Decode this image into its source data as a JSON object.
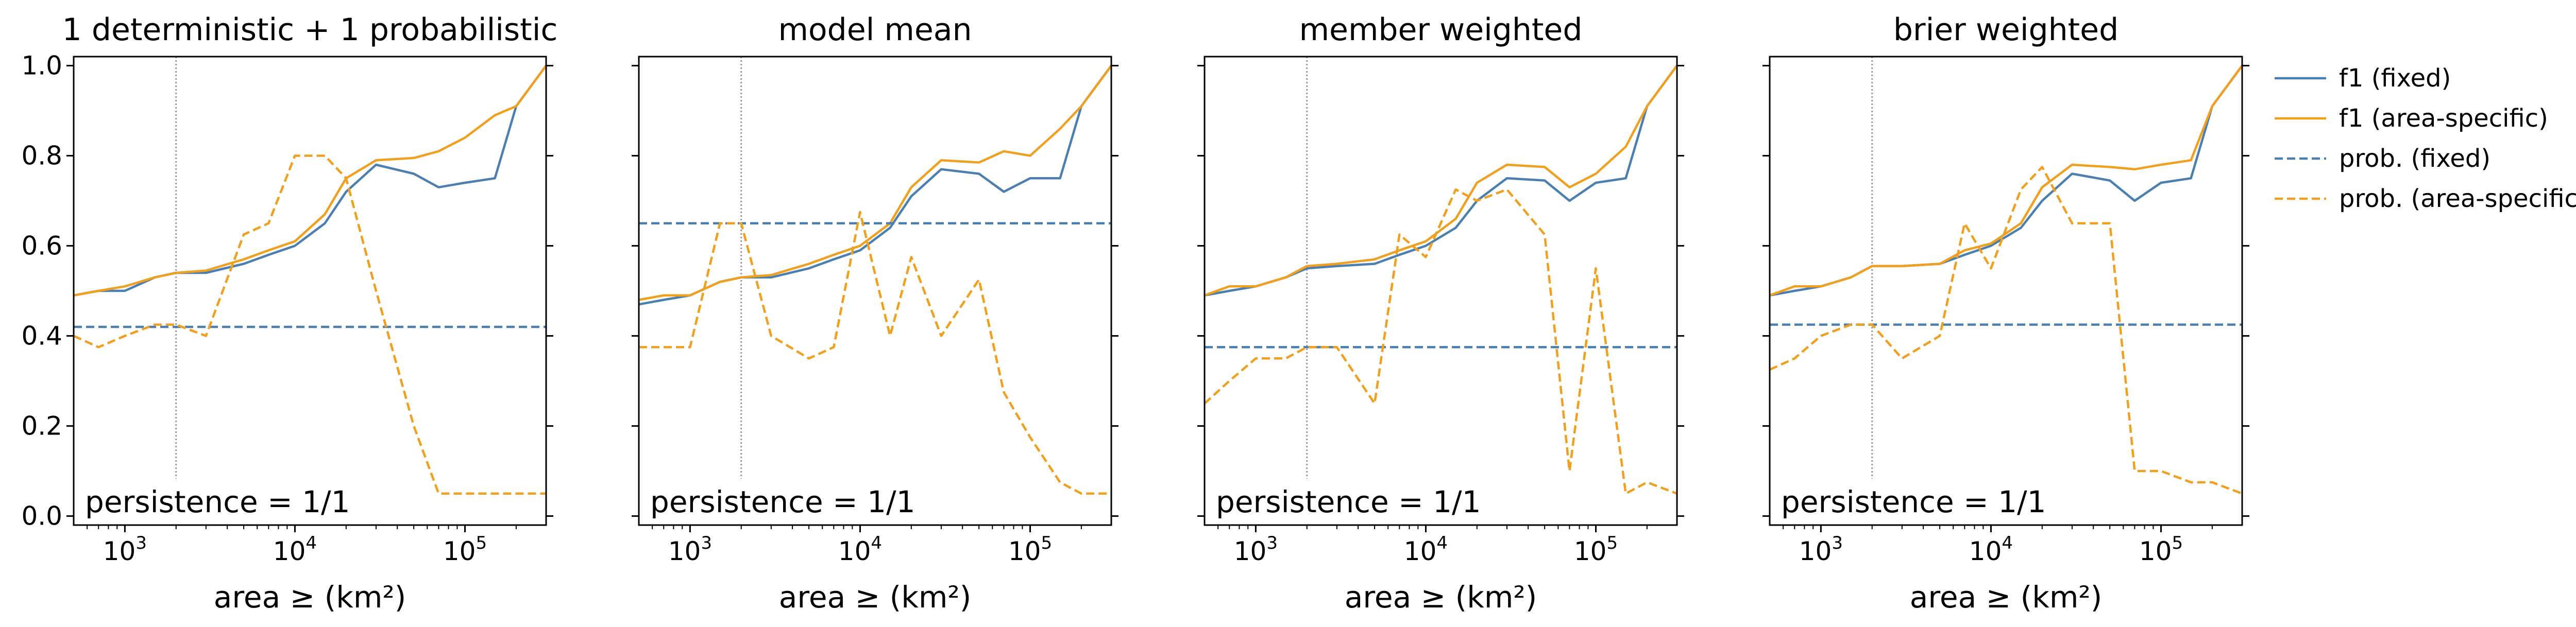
{
  "chart_data": [
    {
      "type": "line",
      "title": "1 deterministic + 1 probabilistic",
      "xlabel": "area ≥ (km²)",
      "ylabel": "",
      "xscale": "log",
      "xlim": [
        500,
        300000
      ],
      "ylim": [
        -0.02,
        1.02
      ],
      "vline_x": 2000,
      "annotation": "persistence = 1/1",
      "x": [
        500,
        700,
        1000,
        1500,
        2000,
        3000,
        5000,
        7000,
        10000,
        15000,
        20000,
        30000,
        50000,
        70000,
        100000,
        150000,
        200000,
        300000
      ],
      "series": [
        {
          "name": "f1 (fixed)",
          "values": [
            0.49,
            0.5,
            0.5,
            0.53,
            0.54,
            0.54,
            0.56,
            0.58,
            0.6,
            0.65,
            0.72,
            0.78,
            0.76,
            0.73,
            0.74,
            0.75,
            0.91,
            1.0
          ]
        },
        {
          "name": "f1 (area-specific)",
          "values": [
            0.49,
            0.5,
            0.51,
            0.53,
            0.54,
            0.545,
            0.57,
            0.59,
            0.61,
            0.67,
            0.75,
            0.79,
            0.795,
            0.81,
            0.84,
            0.89,
            0.91,
            1.0
          ]
        },
        {
          "name": "prob. (fixed)",
          "values": [
            0.42,
            0.42,
            0.42,
            0.42,
            0.42,
            0.42,
            0.42,
            0.42,
            0.42,
            0.42,
            0.42,
            0.42,
            0.42,
            0.42,
            0.42,
            0.42,
            0.42,
            0.42
          ]
        },
        {
          "name": "prob. (area-specific)",
          "values": [
            0.4,
            0.375,
            0.4,
            0.425,
            0.425,
            0.4,
            0.625,
            0.65,
            0.8,
            0.8,
            0.75,
            0.5,
            0.2,
            0.05,
            0.05,
            0.05,
            0.05,
            0.05
          ]
        }
      ]
    },
    {
      "type": "line",
      "title": "model mean",
      "xlabel": "area ≥ (km²)",
      "ylabel": "",
      "xscale": "log",
      "xlim": [
        500,
        300000
      ],
      "ylim": [
        -0.02,
        1.02
      ],
      "vline_x": 2000,
      "annotation": "persistence = 1/1",
      "x": [
        500,
        700,
        1000,
        1500,
        2000,
        3000,
        5000,
        7000,
        10000,
        15000,
        20000,
        30000,
        50000,
        70000,
        100000,
        150000,
        200000,
        300000
      ],
      "series": [
        {
          "name": "f1 (fixed)",
          "values": [
            0.47,
            0.48,
            0.49,
            0.52,
            0.53,
            0.53,
            0.55,
            0.57,
            0.59,
            0.64,
            0.71,
            0.77,
            0.76,
            0.72,
            0.75,
            0.75,
            0.91,
            1.0
          ]
        },
        {
          "name": "f1 (area-specific)",
          "values": [
            0.48,
            0.49,
            0.49,
            0.52,
            0.53,
            0.535,
            0.56,
            0.58,
            0.6,
            0.65,
            0.73,
            0.79,
            0.785,
            0.81,
            0.8,
            0.86,
            0.91,
            1.0
          ]
        },
        {
          "name": "prob. (fixed)",
          "values": [
            0.65,
            0.65,
            0.65,
            0.65,
            0.65,
            0.65,
            0.65,
            0.65,
            0.65,
            0.65,
            0.65,
            0.65,
            0.65,
            0.65,
            0.65,
            0.65,
            0.65,
            0.65
          ]
        },
        {
          "name": "prob. (area-specific)",
          "values": [
            0.375,
            0.375,
            0.375,
            0.65,
            0.65,
            0.4,
            0.35,
            0.375,
            0.675,
            0.4,
            0.575,
            0.4,
            0.525,
            0.275,
            0.175,
            0.075,
            0.05,
            0.05
          ]
        }
      ]
    },
    {
      "type": "line",
      "title": "member weighted",
      "xlabel": "area ≥ (km²)",
      "ylabel": "",
      "xscale": "log",
      "xlim": [
        500,
        300000
      ],
      "ylim": [
        -0.02,
        1.02
      ],
      "vline_x": 2000,
      "annotation": "persistence = 1/1",
      "x": [
        500,
        700,
        1000,
        1500,
        2000,
        3000,
        5000,
        7000,
        10000,
        15000,
        20000,
        30000,
        50000,
        70000,
        100000,
        150000,
        200000,
        300000
      ],
      "series": [
        {
          "name": "f1 (fixed)",
          "values": [
            0.49,
            0.5,
            0.51,
            0.53,
            0.55,
            0.555,
            0.56,
            0.58,
            0.6,
            0.64,
            0.7,
            0.75,
            0.745,
            0.7,
            0.74,
            0.75,
            0.91,
            1.0
          ]
        },
        {
          "name": "f1 (area-specific)",
          "values": [
            0.49,
            0.51,
            0.51,
            0.53,
            0.555,
            0.56,
            0.57,
            0.59,
            0.61,
            0.66,
            0.74,
            0.78,
            0.775,
            0.73,
            0.76,
            0.82,
            0.91,
            1.0
          ]
        },
        {
          "name": "prob. (fixed)",
          "values": [
            0.375,
            0.375,
            0.375,
            0.375,
            0.375,
            0.375,
            0.375,
            0.375,
            0.375,
            0.375,
            0.375,
            0.375,
            0.375,
            0.375,
            0.375,
            0.375,
            0.375,
            0.375
          ]
        },
        {
          "name": "prob. (area-specific)",
          "values": [
            0.25,
            0.3,
            0.35,
            0.35,
            0.375,
            0.375,
            0.25,
            0.625,
            0.575,
            0.725,
            0.7,
            0.725,
            0.625,
            0.1,
            0.55,
            0.05,
            0.075,
            0.05
          ]
        }
      ]
    },
    {
      "type": "line",
      "title": "brier weighted",
      "xlabel": "area ≥ (km²)",
      "ylabel": "",
      "xscale": "log",
      "xlim": [
        500,
        300000
      ],
      "ylim": [
        -0.02,
        1.02
      ],
      "vline_x": 2000,
      "annotation": "persistence = 1/1",
      "x": [
        500,
        700,
        1000,
        1500,
        2000,
        3000,
        5000,
        7000,
        10000,
        15000,
        20000,
        30000,
        50000,
        70000,
        100000,
        150000,
        200000,
        300000
      ],
      "series": [
        {
          "name": "f1 (fixed)",
          "values": [
            0.49,
            0.5,
            0.51,
            0.53,
            0.555,
            0.555,
            0.56,
            0.58,
            0.6,
            0.64,
            0.7,
            0.76,
            0.745,
            0.7,
            0.74,
            0.75,
            0.91,
            1.0
          ]
        },
        {
          "name": "f1 (area-specific)",
          "values": [
            0.49,
            0.51,
            0.51,
            0.53,
            0.555,
            0.555,
            0.56,
            0.59,
            0.605,
            0.65,
            0.73,
            0.78,
            0.775,
            0.77,
            0.78,
            0.79,
            0.91,
            1.0
          ]
        },
        {
          "name": "prob. (fixed)",
          "values": [
            0.425,
            0.425,
            0.425,
            0.425,
            0.425,
            0.425,
            0.425,
            0.425,
            0.425,
            0.425,
            0.425,
            0.425,
            0.425,
            0.425,
            0.425,
            0.425,
            0.425,
            0.425
          ]
        },
        {
          "name": "prob. (area-specific)",
          "values": [
            0.325,
            0.35,
            0.4,
            0.425,
            0.425,
            0.35,
            0.4,
            0.65,
            0.55,
            0.725,
            0.775,
            0.65,
            0.65,
            0.1,
            0.1,
            0.075,
            0.075,
            0.05
          ]
        }
      ]
    }
  ],
  "legend": {
    "placement": "right",
    "items": [
      {
        "label": "f1 (fixed)",
        "color": "#4a7fb0",
        "dash": false
      },
      {
        "label": "f1 (area-specific)",
        "color": "#f0a020",
        "dash": false
      },
      {
        "label": "prob. (fixed)",
        "color": "#4a7fb0",
        "dash": true
      },
      {
        "label": "prob. (area-specific)",
        "color": "#f0a020",
        "dash": true
      }
    ]
  },
  "y_ticks": [
    {
      "value": 0.0,
      "label": "0.0"
    },
    {
      "value": 0.2,
      "label": "0.2"
    },
    {
      "value": 0.4,
      "label": "0.4"
    },
    {
      "value": 0.6,
      "label": "0.6"
    },
    {
      "value": 0.8,
      "label": "0.8"
    },
    {
      "value": 1.0,
      "label": "1.0"
    }
  ],
  "x_ticks": [
    {
      "value": 1000,
      "base": "10",
      "exp": "3"
    },
    {
      "value": 10000,
      "base": "10",
      "exp": "4"
    },
    {
      "value": 100000,
      "base": "10",
      "exp": "5"
    }
  ],
  "colors": {
    "blue": "#4a7fb0",
    "orange": "#f0a020",
    "vline": "#999999",
    "axis": "#000000"
  }
}
